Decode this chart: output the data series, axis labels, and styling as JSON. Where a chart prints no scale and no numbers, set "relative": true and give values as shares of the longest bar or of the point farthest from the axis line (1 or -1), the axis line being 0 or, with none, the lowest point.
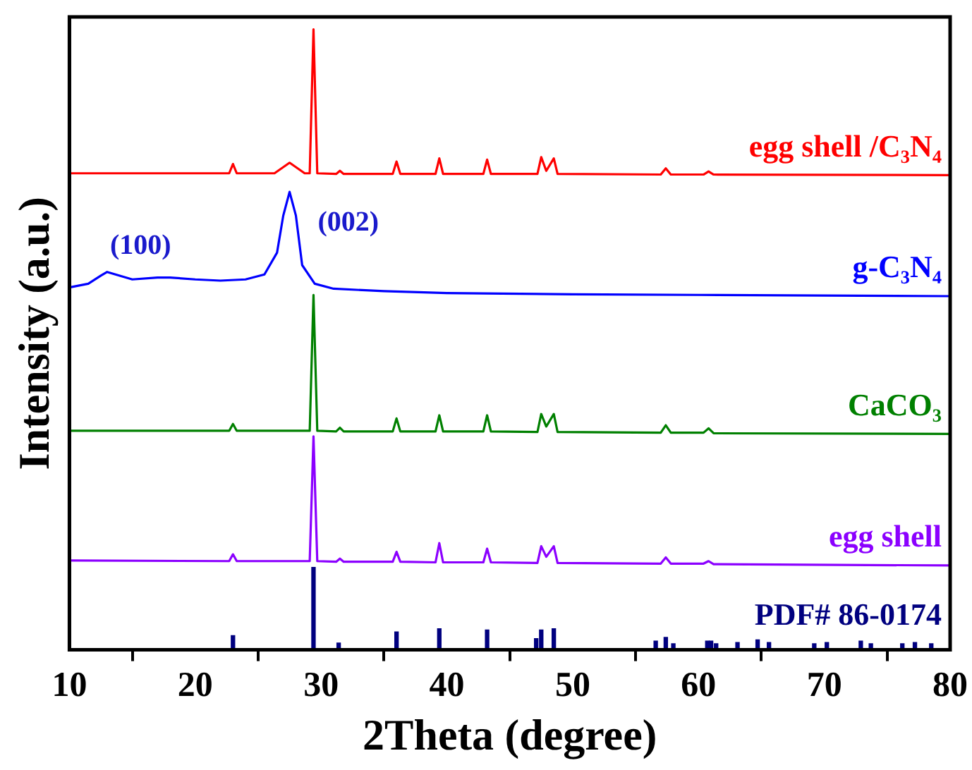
{
  "chart_data": {
    "type": "line",
    "relative": true,
    "xlabel": "2Theta (degree)",
    "ylabel": "Intensity (a.u.)",
    "xlim": [
      10,
      80
    ],
    "xticks": [
      10,
      20,
      30,
      40,
      50,
      60,
      70,
      80
    ],
    "tick_labels": "x",
    "legend": false,
    "grid": false,
    "marker": "none",
    "line_style": "solid",
    "annotations": [
      {
        "text": "(100)",
        "x": 13,
        "y": 0.609
      },
      {
        "text": "(002)",
        "x": 27.5,
        "y": 0.738
      }
    ],
    "series": [
      {
        "name": "egg shell /C₃N₄",
        "color": "#ff0000",
        "x": [
          10,
          22.7,
          23.0,
          23.3,
          26.3,
          27.5,
          28.7,
          29.1,
          29.4,
          29.7,
          31.2,
          31.5,
          31.8,
          35.7,
          36.0,
          36.3,
          39.1,
          39.4,
          39.7,
          42.9,
          43.2,
          43.5,
          47.2,
          47.5,
          47.9,
          48.5,
          48.8,
          57.0,
          57.4,
          57.8,
          60.4,
          60.8,
          61.2,
          80
        ],
        "values": [
          0.768,
          0.768,
          0.783,
          0.768,
          0.768,
          0.785,
          0.768,
          0.768,
          1.0,
          0.768,
          0.767,
          0.772,
          0.767,
          0.767,
          0.787,
          0.767,
          0.767,
          0.792,
          0.767,
          0.767,
          0.79,
          0.767,
          0.767,
          0.794,
          0.772,
          0.792,
          0.767,
          0.766,
          0.776,
          0.766,
          0.766,
          0.771,
          0.766,
          0.765
        ]
      },
      {
        "name": "g-C₃N₄",
        "color": "#0000ff",
        "x": [
          10,
          11.5,
          12.5,
          13.0,
          14,
          15,
          17,
          18,
          20,
          22,
          24,
          25.5,
          26.5,
          27.0,
          27.5,
          28.0,
          28.5,
          29.5,
          31,
          35,
          40,
          50,
          60,
          70,
          80
        ],
        "values": [
          0.584,
          0.59,
          0.603,
          0.609,
          0.603,
          0.597,
          0.6,
          0.6,
          0.597,
          0.595,
          0.597,
          0.605,
          0.64,
          0.7,
          0.738,
          0.7,
          0.62,
          0.59,
          0.582,
          0.578,
          0.575,
          0.573,
          0.572,
          0.571,
          0.57
        ]
      },
      {
        "name": "CaCO₃",
        "color": "#008000",
        "x": [
          10,
          22.7,
          23.0,
          23.3,
          26.3,
          27.5,
          28.7,
          29.1,
          29.4,
          29.7,
          31.2,
          31.5,
          31.8,
          35.7,
          36.0,
          36.3,
          39.1,
          39.4,
          39.7,
          42.9,
          43.2,
          43.5,
          47.2,
          47.5,
          47.9,
          48.5,
          48.8,
          57.0,
          57.4,
          57.8,
          60.4,
          60.8,
          61.2,
          80
        ],
        "values": [
          0.353,
          0.353,
          0.364,
          0.353,
          0.353,
          0.353,
          0.353,
          0.353,
          0.572,
          0.353,
          0.352,
          0.358,
          0.352,
          0.352,
          0.373,
          0.352,
          0.352,
          0.378,
          0.352,
          0.352,
          0.378,
          0.352,
          0.351,
          0.38,
          0.36,
          0.38,
          0.351,
          0.35,
          0.362,
          0.35,
          0.35,
          0.357,
          0.349,
          0.348
        ]
      },
      {
        "name": "egg shell",
        "color": "#8b00ff",
        "x": [
          10,
          22.7,
          23.0,
          23.3,
          26.3,
          27.5,
          28.7,
          29.1,
          29.4,
          29.7,
          31.2,
          31.5,
          31.8,
          35.7,
          36.0,
          36.3,
          39.1,
          39.4,
          39.7,
          42.9,
          43.2,
          43.5,
          47.2,
          47.5,
          47.9,
          48.5,
          48.8,
          57.0,
          57.4,
          57.8,
          60.4,
          60.8,
          61.2,
          80
        ],
        "values": [
          0.144,
          0.143,
          0.154,
          0.143,
          0.143,
          0.143,
          0.143,
          0.143,
          0.344,
          0.143,
          0.142,
          0.147,
          0.142,
          0.142,
          0.158,
          0.142,
          0.141,
          0.172,
          0.141,
          0.141,
          0.163,
          0.141,
          0.14,
          0.167,
          0.15,
          0.167,
          0.14,
          0.139,
          0.149,
          0.139,
          0.139,
          0.143,
          0.138,
          0.136
        ]
      },
      {
        "name": "PDF# 86-0174",
        "type": "bar",
        "color": "#00007f",
        "x": [
          23.0,
          29.4,
          31.4,
          36.0,
          39.4,
          43.2,
          47.1,
          47.5,
          48.5,
          56.6,
          57.4,
          58.0,
          60.7,
          61.0,
          61.4,
          63.1,
          64.7,
          65.6,
          69.2,
          70.2,
          72.9,
          73.7,
          76.2,
          77.2,
          78.5
        ],
        "values": [
          0.023,
          0.133,
          0.011,
          0.029,
          0.034,
          0.032,
          0.018,
          0.032,
          0.034,
          0.014,
          0.02,
          0.01,
          0.014,
          0.014,
          0.01,
          0.012,
          0.016,
          0.012,
          0.01,
          0.012,
          0.014,
          0.01,
          0.01,
          0.012,
          0.01
        ]
      }
    ]
  }
}
